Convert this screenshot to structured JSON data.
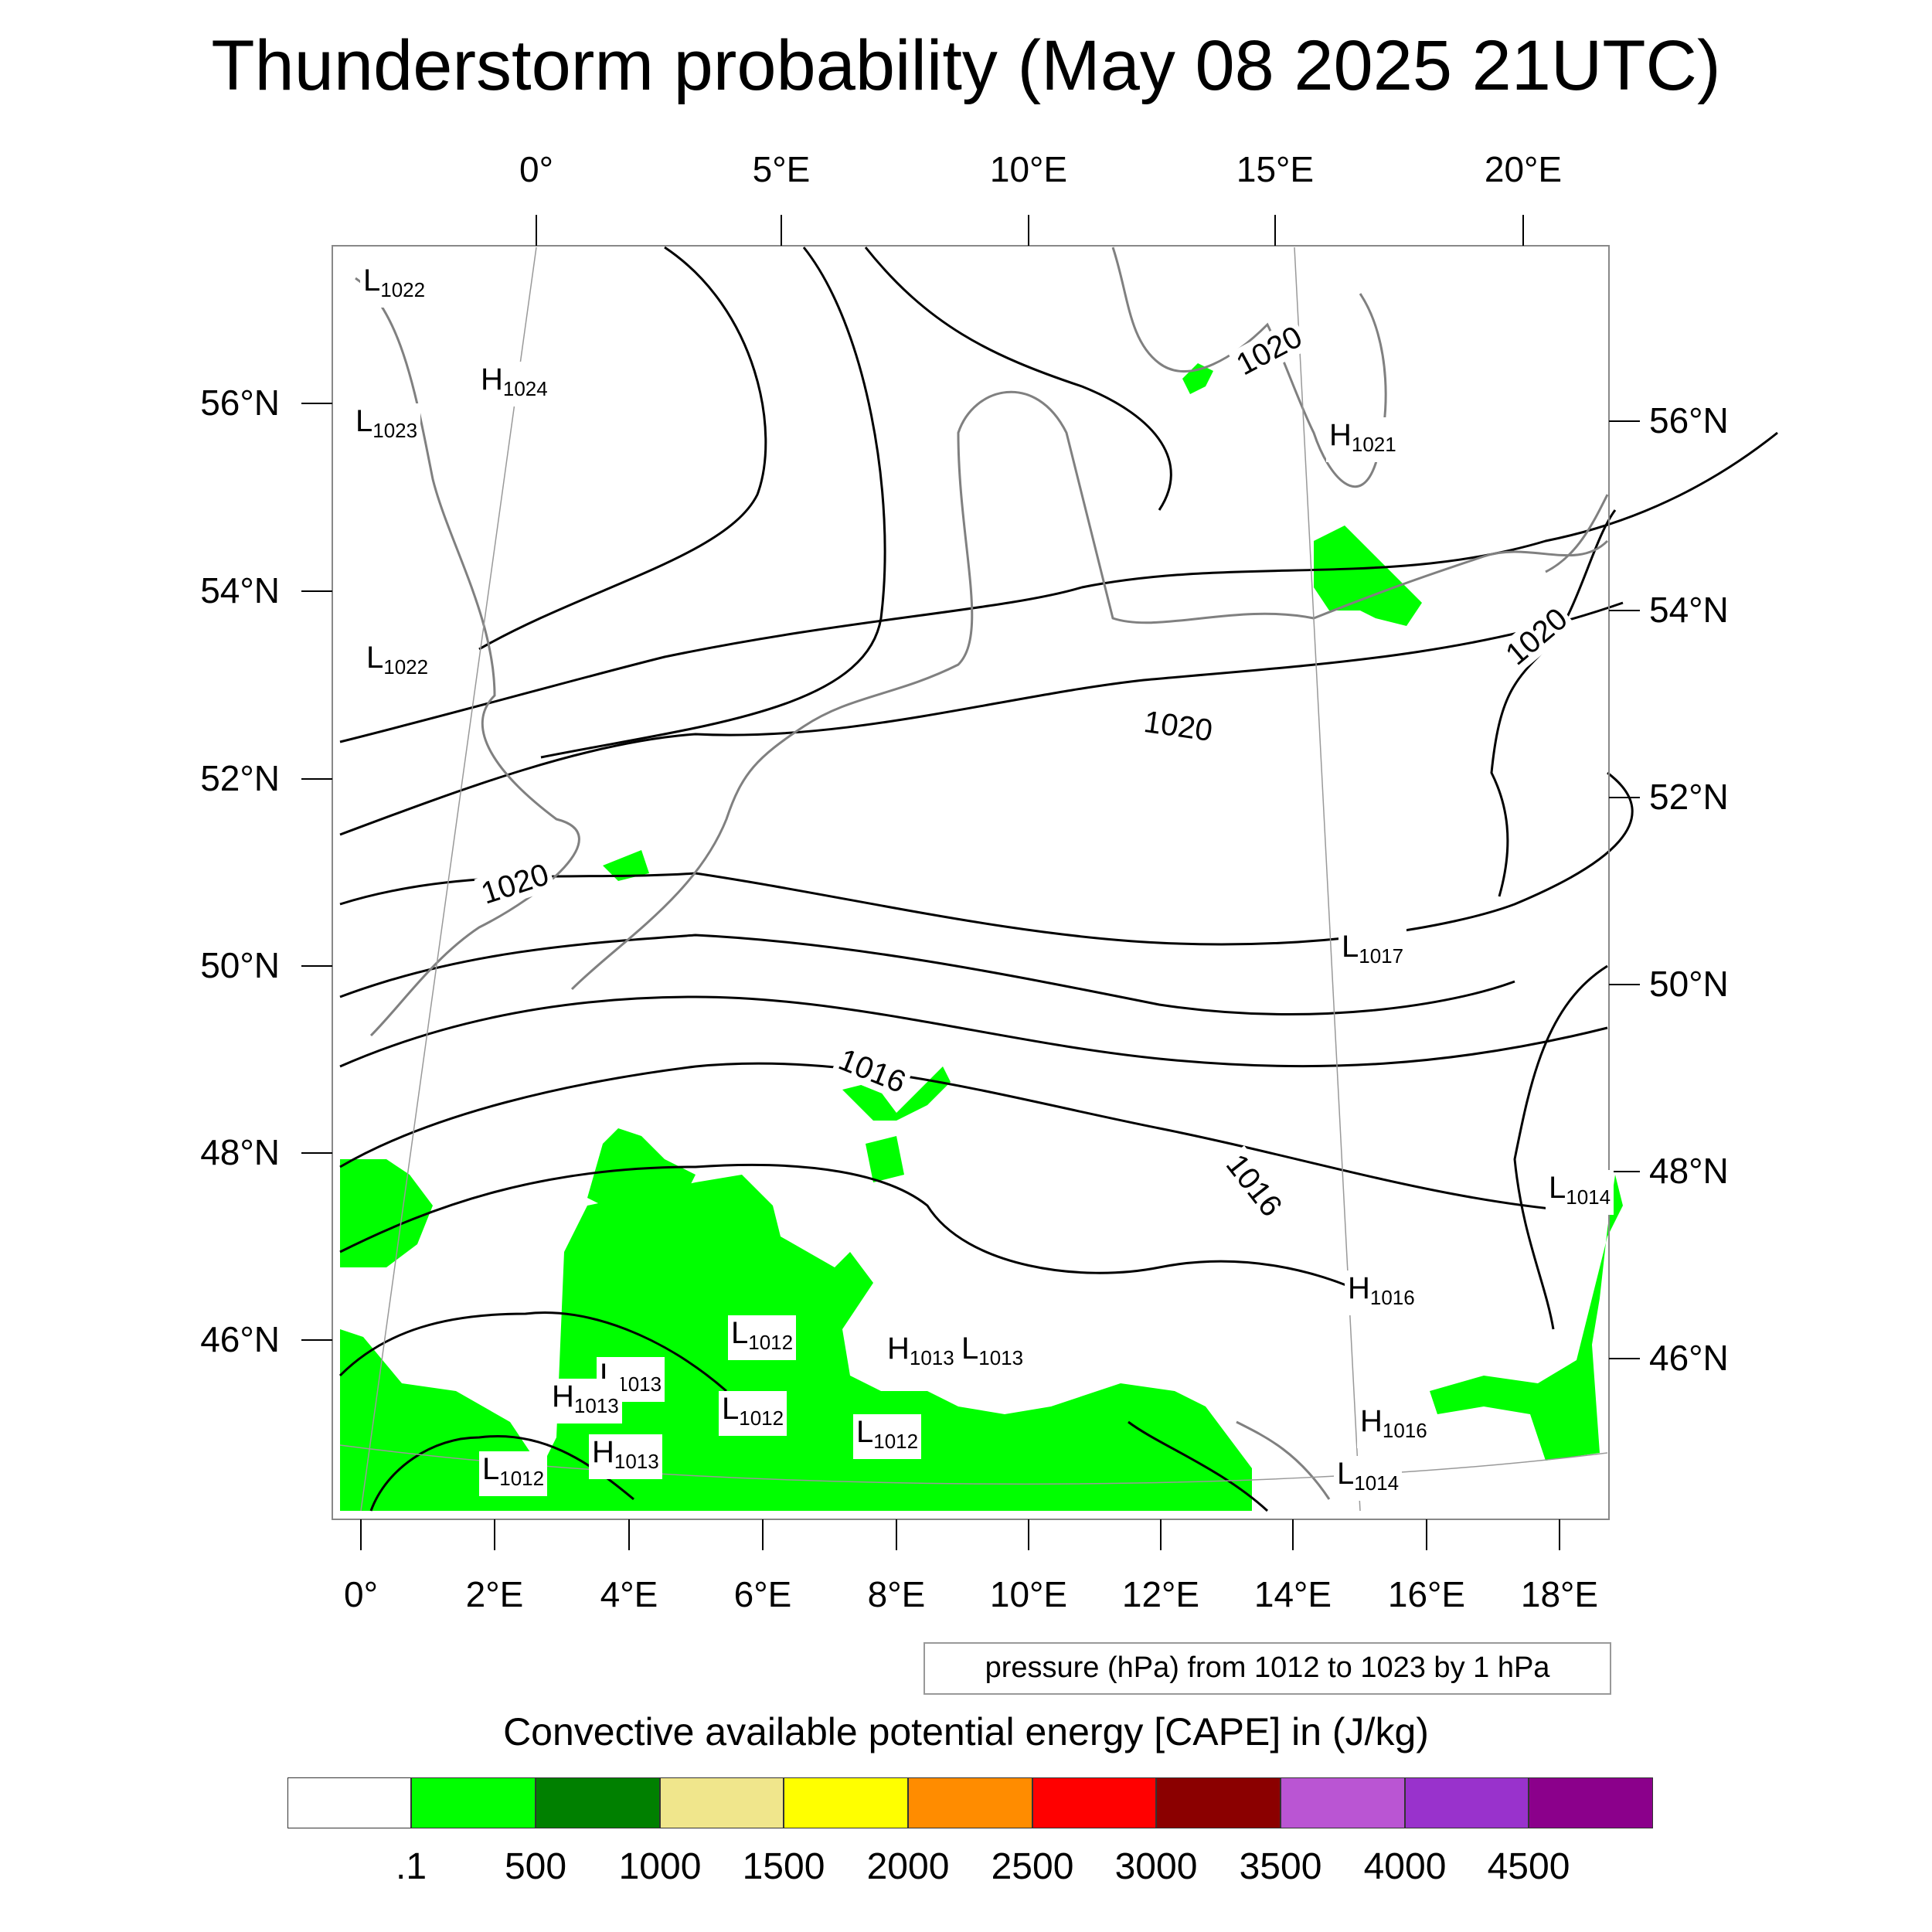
{
  "title": "Thunderstorm probability (May 08 2025 21UTC)",
  "top_ticks": [
    "0°",
    "5°E",
    "10°E",
    "15°E",
    "20°E"
  ],
  "bottom_ticks": [
    "0°",
    "2°E",
    "4°E",
    "6°E",
    "8°E",
    "10°E",
    "12°E",
    "14°E",
    "16°E",
    "18°E"
  ],
  "left_ticks": [
    "56°N",
    "54°N",
    "52°N",
    "50°N",
    "48°N",
    "46°N"
  ],
  "right_ticks": [
    "56°N",
    "54°N",
    "52°N",
    "50°N",
    "48°N",
    "46°N"
  ],
  "pressure_labels": [
    {
      "letter": "L",
      "value": "1022"
    },
    {
      "letter": "H",
      "value": "1024"
    },
    {
      "letter": "L",
      "value": "1023"
    },
    {
      "letter": "L",
      "value": "1022"
    },
    {
      "letter": "H",
      "value": "1021"
    },
    {
      "letter": "L",
      "value": "1017"
    },
    {
      "letter": "L",
      "value": "1014"
    },
    {
      "letter": "H",
      "value": "1016"
    },
    {
      "letter": "L",
      "value": "1012"
    },
    {
      "letter": "H",
      "value": "1013"
    },
    {
      "letter": "L",
      "value": "1013"
    },
    {
      "letter": "L",
      "value": "1013"
    },
    {
      "letter": "H",
      "value": "1013"
    },
    {
      "letter": "L",
      "value": "1012"
    },
    {
      "letter": "L",
      "value": "1012"
    },
    {
      "letter": "H",
      "value": "1013"
    },
    {
      "letter": "L",
      "value": "1012"
    },
    {
      "letter": "H",
      "value": "1016"
    },
    {
      "letter": "L",
      "value": "1014"
    }
  ],
  "contour_labels": [
    "1020",
    "1020",
    "1020",
    "1020",
    "1016",
    "1016"
  ],
  "note": "pressure (hPa) from 1012 to 1023 by 1 hPa",
  "colorbar": {
    "title": "Convective available potential energy [CAPE] in (J/kg)",
    "colors": [
      "#ffffff",
      "#00ff00",
      "#008000",
      "#f0e68c",
      "#ffff00",
      "#ff8c00",
      "#ff0000",
      "#8b0000",
      "#ba55d3",
      "#9932cc",
      "#8b008b"
    ],
    "labels": [
      ".1",
      "500",
      "1000",
      "1500",
      "2000",
      "2500",
      "3000",
      "3500",
      "4000",
      "4500"
    ]
  },
  "colors": {
    "cape_low": "#00ff00",
    "coast": "#808080",
    "isobar": "#000000"
  }
}
